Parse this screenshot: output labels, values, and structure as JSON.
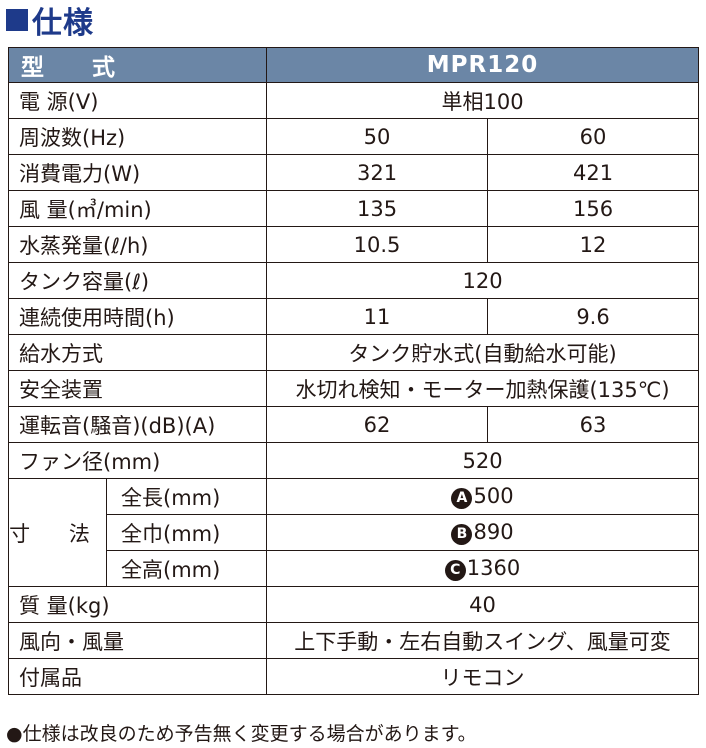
{
  "heading": {
    "marker": "■",
    "title": "仕様"
  },
  "table": {
    "header": {
      "label": "型 式",
      "model": "MPR120"
    },
    "rows": [
      {
        "label": "電 源(V)",
        "value": "単相100"
      },
      {
        "label": "周波数(Hz)",
        "v50": "50",
        "v60": "60"
      },
      {
        "label": "消費電力(W)",
        "v50": "321",
        "v60": "421"
      },
      {
        "label": "風 量(㎥/min)",
        "v50": "135",
        "v60": "156"
      },
      {
        "label": "水蒸発量(ℓ/h)",
        "v50": "10.5",
        "v60": "12"
      },
      {
        "label": "タンク容量(ℓ)",
        "value": "120"
      },
      {
        "label": "連続使用時間(h)",
        "v50": "11",
        "v60": "9.6"
      },
      {
        "label": "給水方式",
        "value": "タンク貯水式(自動給水可能)"
      },
      {
        "label": "安全装置",
        "value": "水切れ検知・モーター加熱保護(135℃)"
      },
      {
        "label": "運転音(騒音)(dB)(A)",
        "v50": "62",
        "v60": "63"
      },
      {
        "label": "ファン径(mm)",
        "value": "520"
      },
      {
        "label": "質 量(kg)",
        "value": "40"
      },
      {
        "label": "風向・風量",
        "value": "上下手動・左右自動スイング、風量可変"
      },
      {
        "label": "付属品",
        "value": "リモコン"
      }
    ],
    "dimensions": {
      "group_label": "寸 法",
      "items": [
        {
          "label": "全長(mm)",
          "marker": "A",
          "value": "500"
        },
        {
          "label": "全巾(mm)",
          "marker": "B",
          "value": "890"
        },
        {
          "label": "全高(mm)",
          "marker": "C",
          "value": "1360"
        }
      ]
    }
  },
  "note": "●仕様は改良のため予告無く変更する場合があります。",
  "colors": {
    "heading": "#1e3a8a",
    "header_bg": "#6b86a6",
    "header_text": "#ffffff",
    "border": "#231815"
  }
}
